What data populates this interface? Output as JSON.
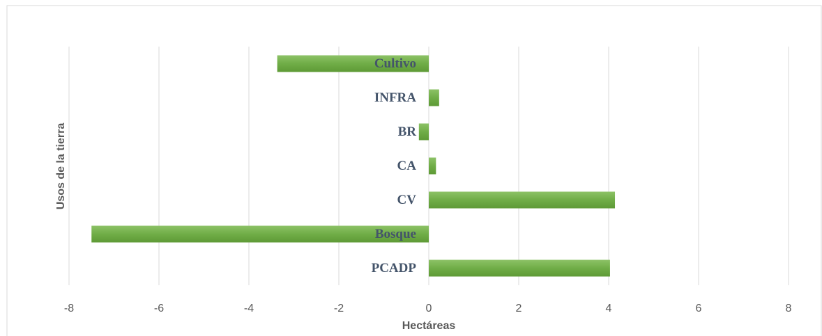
{
  "chart_data": {
    "type": "bar",
    "orientation": "horizontal",
    "categories": [
      "Cultivo",
      "INFRA",
      "BR",
      "CA",
      "CV",
      "Bosque",
      "PCADP"
    ],
    "values": [
      -3.37,
      0.23,
      -0.22,
      0.16,
      4.14,
      -7.5,
      4.03
    ],
    "color": "#70ad47",
    "xlim": [
      -8,
      8
    ],
    "xticks": [
      -8,
      -6,
      -4,
      -2,
      0,
      2,
      4,
      6,
      8
    ],
    "x_label": "Hectáreas",
    "y_label": "Usos de la tierra",
    "grid": true
  }
}
